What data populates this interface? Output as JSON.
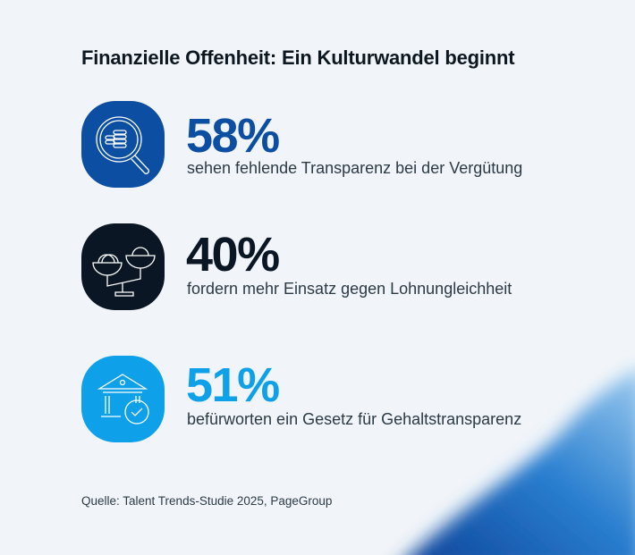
{
  "title": "Finanzielle Offenheit: Ein Kulturwandel beginnt",
  "stats": [
    {
      "value": "58%",
      "text": "sehen fehlende Transparenz bei der Vergütung",
      "icon": "magnifier-coins-icon",
      "color": "#0b4ea2",
      "icon_bg": "#0b4ea2"
    },
    {
      "value": "40%",
      "text": "fordern mehr Einsatz gegen Lohnungleichheit",
      "icon": "scale-coins-icon",
      "color": "#0a1624",
      "icon_bg": "#0a1624"
    },
    {
      "value": "51%",
      "text": "befürworten ein Gesetz für Gehaltstransparenz",
      "icon": "bank-check-icon",
      "color": "#0ea0e8",
      "icon_bg": "#0ea0e8"
    }
  ],
  "source": "Quelle: Talent Trends-Studie 2025, PageGroup"
}
